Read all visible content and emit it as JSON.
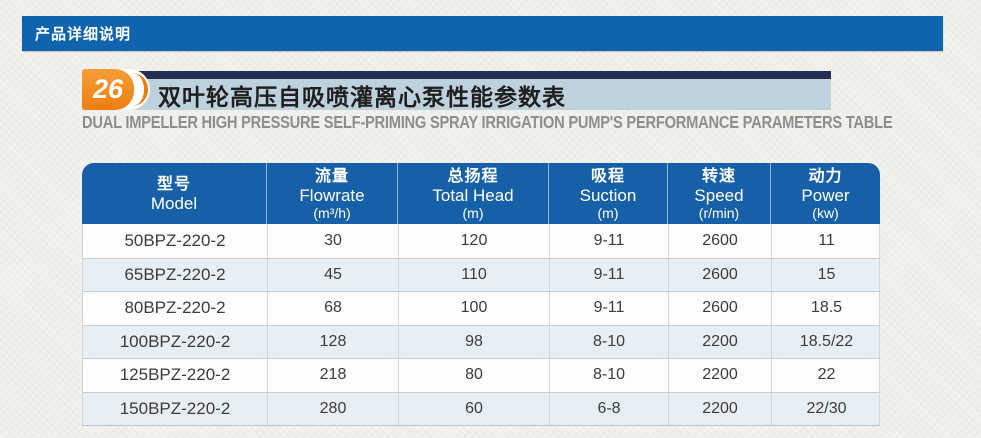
{
  "top_bar": {
    "title": "产品详细说明"
  },
  "section_header": {
    "badge_number": "26",
    "title_cn": "双叶轮高压自吸喷灌离心泵性能参数表",
    "subtitle_en": "DUAL IMPELLER HIGH PRESSURE SELF-PRIMING SPRAY IRRIGATION PUMP'S PERFORMANCE PARAMETERS TABLE"
  },
  "table": {
    "columns": [
      {
        "cn": "型号",
        "en": "Model",
        "unit": ""
      },
      {
        "cn": "流量",
        "en": "Flowrate",
        "unit": "(m³/h)"
      },
      {
        "cn": "总扬程",
        "en": "Total Head",
        "unit": "(m)"
      },
      {
        "cn": "吸程",
        "en": "Suction",
        "unit": "(m)"
      },
      {
        "cn": "转速",
        "en": "Speed",
        "unit": "(r/min)"
      },
      {
        "cn": "动力",
        "en": "Power",
        "unit": "(kw)"
      }
    ],
    "rows": [
      [
        "50BPZ-220-2",
        "30",
        "120",
        "9-11",
        "2600",
        "11"
      ],
      [
        "65BPZ-220-2",
        "45",
        "110",
        "9-11",
        "2600",
        "15"
      ],
      [
        "80BPZ-220-2",
        "68",
        "100",
        "9-11",
        "2600",
        "18.5"
      ],
      [
        "100BPZ-220-2",
        "128",
        "98",
        "8-10",
        "2200",
        "18.5/22"
      ],
      [
        "125BPZ-220-2",
        "218",
        "80",
        "8-10",
        "2200",
        "22"
      ],
      [
        "150BPZ-220-2",
        "280",
        "60",
        "6-8",
        "2200",
        "22/30"
      ]
    ]
  },
  "colors": {
    "top_bar_blue": "#1064ae",
    "table_header_blue": "#1560a6",
    "navy_strip": "#232c52",
    "badge_orange": "#ee7e10",
    "title_bar_blue": "#bed2de",
    "row_alt": "#e8eff4",
    "row_white": "#fdfdfd"
  }
}
